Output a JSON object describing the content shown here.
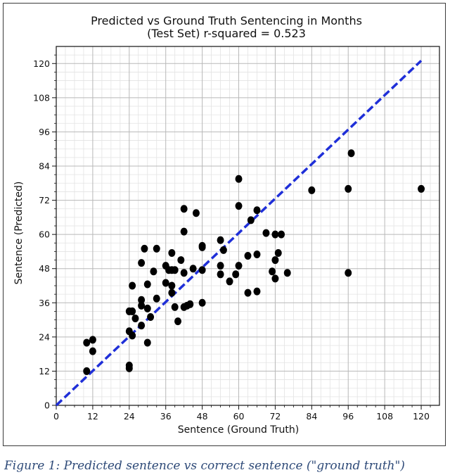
{
  "chart_data": {
    "type": "scatter",
    "title": "Predicted vs Ground Truth Sentencing in Months",
    "subtitle": "(Test Set) r-squared = 0.523",
    "xlabel": "Sentence (Ground Truth)",
    "ylabel": "Sentence (Predicted)",
    "xlim": [
      0,
      126
    ],
    "ylim": [
      0,
      126
    ],
    "xticks": [
      0,
      12,
      24,
      36,
      48,
      60,
      72,
      84,
      96,
      108,
      120
    ],
    "yticks": [
      0,
      12,
      24,
      36,
      48,
      60,
      72,
      84,
      96,
      108,
      120
    ],
    "grid": true,
    "reference_line": {
      "from": [
        0,
        0
      ],
      "to": [
        120,
        121
      ],
      "color": "#1f2fd8",
      "style": "dashed"
    },
    "point_color": "#000000",
    "points": [
      [
        10,
        22
      ],
      [
        12,
        23
      ],
      [
        12,
        19
      ],
      [
        10,
        12
      ],
      [
        24,
        14
      ],
      [
        24,
        13
      ],
      [
        24,
        26
      ],
      [
        24,
        33
      ],
      [
        25,
        33
      ],
      [
        25,
        42
      ],
      [
        25,
        24.5
      ],
      [
        26,
        30.5
      ],
      [
        28,
        50
      ],
      [
        28,
        37
      ],
      [
        28,
        35
      ],
      [
        28,
        28
      ],
      [
        29,
        55
      ],
      [
        30,
        42.5
      ],
      [
        30,
        22
      ],
      [
        30,
        34
      ],
      [
        31,
        31
      ],
      [
        32,
        47
      ],
      [
        33,
        55
      ],
      [
        33,
        37.5
      ],
      [
        36,
        49
      ],
      [
        36,
        43
      ],
      [
        37,
        47.5
      ],
      [
        38,
        47.5
      ],
      [
        38,
        53.5
      ],
      [
        38,
        42
      ],
      [
        38,
        39.5
      ],
      [
        39,
        47.5
      ],
      [
        39,
        34.5
      ],
      [
        40,
        29.5
      ],
      [
        41,
        51
      ],
      [
        42,
        69
      ],
      [
        42,
        61
      ],
      [
        42,
        46.5
      ],
      [
        42,
        34.5
      ],
      [
        43,
        35
      ],
      [
        44,
        35.5
      ],
      [
        45,
        48
      ],
      [
        46,
        67.5
      ],
      [
        48,
        56
      ],
      [
        48,
        55.5
      ],
      [
        48,
        47.5
      ],
      [
        48,
        36
      ],
      [
        54,
        58
      ],
      [
        54,
        49
      ],
      [
        54,
        46
      ],
      [
        55,
        54.5
      ],
      [
        57,
        43.5
      ],
      [
        59,
        46
      ],
      [
        60,
        79.5
      ],
      [
        60,
        70
      ],
      [
        60,
        49
      ],
      [
        63,
        52.5
      ],
      [
        63,
        39.5
      ],
      [
        64,
        65
      ],
      [
        66,
        68.5
      ],
      [
        66,
        53
      ],
      [
        66,
        40
      ],
      [
        69,
        60.5
      ],
      [
        71,
        47
      ],
      [
        72,
        60
      ],
      [
        72,
        51
      ],
      [
        72,
        44.5
      ],
      [
        73,
        53.5
      ],
      [
        74,
        60
      ],
      [
        76,
        46.5
      ],
      [
        84,
        75.5
      ],
      [
        96,
        76
      ],
      [
        96,
        46.5
      ],
      [
        97,
        88.5
      ],
      [
        120,
        76
      ]
    ]
  },
  "caption": "Figure 1: Predicted sentence vs correct sentence (\"ground truth\")"
}
